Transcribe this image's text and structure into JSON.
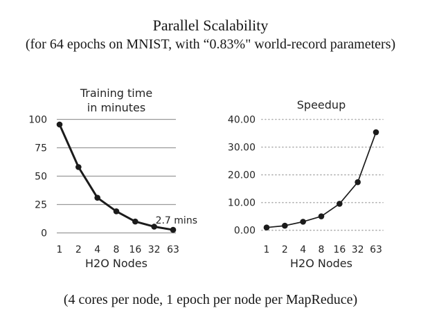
{
  "header": {
    "title": "Parallel Scalability",
    "subtitle": "(for 64 epochs on MNIST, with “0.83%\" world-record parameters)"
  },
  "footer": {
    "caption": "(4 cores per node, 1 epoch per node per MapReduce)"
  },
  "colors": {
    "text": "#242424",
    "line": "#1b1b1b",
    "point": "#1b1b1b",
    "solid_grid": "#999999",
    "dotted_grid": "#a9a9a9",
    "background": "#ffffff"
  },
  "chart_data": [
    {
      "type": "line",
      "title_lines": [
        "Training time",
        "in minutes"
      ],
      "xlabel": "H2O Nodes",
      "categories": [
        "1",
        "2",
        "4",
        "8",
        "16",
        "32",
        "63"
      ],
      "values": [
        95.5,
        58,
        31,
        19,
        10,
        5.5,
        2.7
      ],
      "ytick_values": [
        100,
        75,
        50,
        25,
        0
      ],
      "ytick_labels": [
        "100",
        "75",
        "50",
        "25",
        "0"
      ],
      "ylim": [
        0,
        100
      ],
      "grid_style": "solid",
      "legend": "none",
      "annotation": {
        "text": "2.7 mins",
        "target_category": "63"
      }
    },
    {
      "type": "line",
      "title_lines": [
        "Speedup"
      ],
      "xlabel": "H2O Nodes",
      "categories": [
        "1",
        "2",
        "4",
        "8",
        "16",
        "32",
        "63"
      ],
      "values": [
        1.0,
        1.65,
        3.08,
        5.03,
        9.55,
        17.36,
        35.37
      ],
      "ytick_values": [
        40,
        30,
        20,
        10,
        0
      ],
      "ytick_labels": [
        "40.00",
        "30.00",
        "20.00",
        "10.00",
        "0.00"
      ],
      "ylim": [
        0,
        40
      ],
      "grid_style": "dotted",
      "legend": "none"
    }
  ]
}
